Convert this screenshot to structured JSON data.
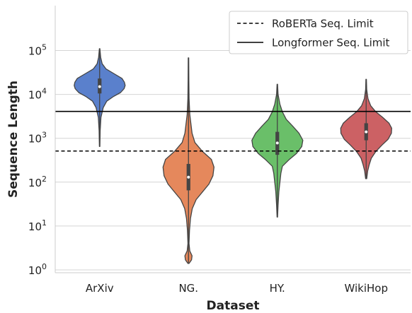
{
  "chart_data": {
    "type": "violin",
    "title": "",
    "xlabel": "Dataset",
    "ylabel": "Sequence Length",
    "yscale": "log",
    "ylim": [
      1,
      1000000
    ],
    "ytick_labels": [
      {
        "value": 1,
        "base": "10",
        "exp": "0"
      },
      {
        "value": 10,
        "base": "10",
        "exp": "1"
      },
      {
        "value": 100,
        "base": "10",
        "exp": "2"
      },
      {
        "value": 1000,
        "base": "10",
        "exp": "3"
      },
      {
        "value": 10000,
        "base": "10",
        "exp": "4"
      },
      {
        "value": 100000,
        "base": "10",
        "exp": "5"
      }
    ],
    "grid": "horizontal",
    "legend_position": "top-right",
    "categories": [
      "ArXiv",
      "NG.",
      "HY.",
      "WikiHop"
    ],
    "series": [
      {
        "category": "ArXiv",
        "color": "#5a80cc",
        "min": 650,
        "max": 110000,
        "q1": 10500,
        "median": 15000,
        "q3": 23000,
        "profile": [
          [
            650,
            0.01
          ],
          [
            1500,
            0.02
          ],
          [
            3000,
            0.05
          ],
          [
            5000,
            0.14
          ],
          [
            7000,
            0.28
          ],
          [
            9000,
            0.55
          ],
          [
            11000,
            0.82
          ],
          [
            13500,
            0.96
          ],
          [
            16000,
            1.0
          ],
          [
            19000,
            0.97
          ],
          [
            23000,
            0.88
          ],
          [
            30000,
            0.55
          ],
          [
            38000,
            0.25
          ],
          [
            50000,
            0.1
          ],
          [
            70000,
            0.04
          ],
          [
            110000,
            0.01
          ]
        ]
      },
      {
        "category": "NG.",
        "color": "#e5885c",
        "min": 1.4,
        "max": 68000,
        "q1": 65,
        "median": 130,
        "q3": 260,
        "profile": [
          [
            1.4,
            0.02
          ],
          [
            1.7,
            0.12
          ],
          [
            2.1,
            0.14
          ],
          [
            2.7,
            0.05
          ],
          [
            4,
            0.02
          ],
          [
            8,
            0.04
          ],
          [
            15,
            0.08
          ],
          [
            25,
            0.15
          ],
          [
            40,
            0.3
          ],
          [
            60,
            0.55
          ],
          [
            90,
            0.8
          ],
          [
            140,
            0.96
          ],
          [
            220,
            1.0
          ],
          [
            330,
            0.9
          ],
          [
            500,
            0.55
          ],
          [
            800,
            0.25
          ],
          [
            1300,
            0.14
          ],
          [
            2000,
            0.1
          ],
          [
            3500,
            0.05
          ],
          [
            8000,
            0.025
          ],
          [
            20000,
            0.015
          ],
          [
            68000,
            0.01
          ]
        ]
      },
      {
        "category": "HY.",
        "color": "#6abf69",
        "min": 16,
        "max": 17000,
        "q1": 420,
        "median": 780,
        "q3": 1400,
        "profile": [
          [
            16,
            0.01
          ],
          [
            30,
            0.03
          ],
          [
            60,
            0.06
          ],
          [
            100,
            0.1
          ],
          [
            160,
            0.14
          ],
          [
            230,
            0.2
          ],
          [
            320,
            0.45
          ],
          [
            450,
            0.75
          ],
          [
            650,
            0.96
          ],
          [
            900,
            1.0
          ],
          [
            1300,
            0.85
          ],
          [
            1900,
            0.6
          ],
          [
            2700,
            0.35
          ],
          [
            4000,
            0.2
          ],
          [
            6000,
            0.1
          ],
          [
            10000,
            0.03
          ],
          [
            17000,
            0.01
          ]
        ]
      },
      {
        "category": "WikiHop",
        "color": "#cc6164",
        "min": 120,
        "max": 22000,
        "q1": 900,
        "median": 1400,
        "q3": 2200,
        "profile": [
          [
            120,
            0.02
          ],
          [
            180,
            0.06
          ],
          [
            250,
            0.12
          ],
          [
            350,
            0.2
          ],
          [
            500,
            0.38
          ],
          [
            700,
            0.62
          ],
          [
            950,
            0.86
          ],
          [
            1300,
            0.99
          ],
          [
            1700,
            1.0
          ],
          [
            2200,
            0.9
          ],
          [
            3000,
            0.65
          ],
          [
            4000,
            0.38
          ],
          [
            5500,
            0.18
          ],
          [
            8000,
            0.07
          ],
          [
            13000,
            0.02
          ],
          [
            22000,
            0.01
          ]
        ]
      }
    ],
    "reference_lines": [
      {
        "name": "RoBERTa Seq. Limit",
        "value": 512,
        "style": "dashed"
      },
      {
        "name": "Longformer Seq. Limit",
        "value": 4096,
        "style": "solid"
      }
    ]
  }
}
